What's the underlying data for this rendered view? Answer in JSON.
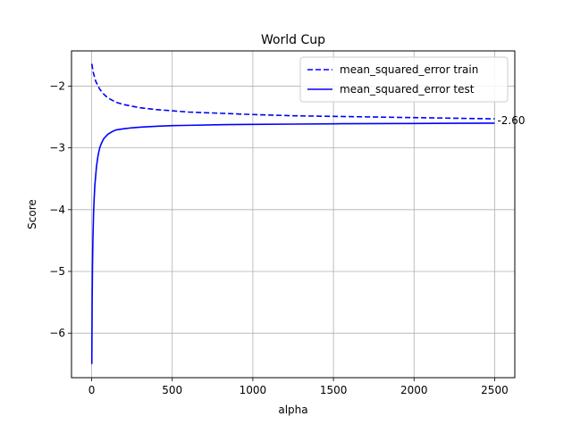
{
  "chart_data": {
    "type": "line",
    "title": "World Cup",
    "xlabel": "alpha",
    "ylabel": "Score",
    "xlim": [
      -125,
      2625
    ],
    "ylim": [
      -6.72,
      -1.43
    ],
    "xticks": [
      0,
      500,
      1000,
      1500,
      2000,
      2500
    ],
    "xtick_labels": [
      "0",
      "500",
      "1000",
      "1500",
      "2000",
      "2500"
    ],
    "yticks": [
      -6,
      -5,
      -4,
      -3,
      -2
    ],
    "ytick_labels": [
      "−6",
      "−5",
      "−4",
      "−3",
      "−2"
    ],
    "grid": true,
    "legend_position": "top-right",
    "series": [
      {
        "name": "mean_squared_error train",
        "color": "#0000ff",
        "style": "dashed",
        "x": [
          1,
          10,
          25,
          50,
          75,
          100,
          150,
          200,
          300,
          400,
          500,
          600,
          800,
          1000,
          1250,
          1500,
          1750,
          2000,
          2250,
          2500
        ],
        "y": [
          -1.64,
          -1.78,
          -1.92,
          -2.05,
          -2.13,
          -2.19,
          -2.26,
          -2.3,
          -2.35,
          -2.38,
          -2.4,
          -2.42,
          -2.44,
          -2.46,
          -2.48,
          -2.49,
          -2.5,
          -2.51,
          -2.52,
          -2.53
        ]
      },
      {
        "name": "mean_squared_error test",
        "color": "#0000ff",
        "style": "solid",
        "x": [
          1,
          3,
          5,
          8,
          12,
          16,
          20,
          25,
          30,
          40,
          50,
          60,
          75,
          100,
          125,
          150,
          200,
          250,
          300,
          400,
          500,
          600,
          800,
          1000,
          1250,
          1500,
          1750,
          2000,
          2250,
          2500
        ],
        "y": [
          -6.5,
          -5.5,
          -4.95,
          -4.45,
          -4.05,
          -3.8,
          -3.6,
          -3.45,
          -3.3,
          -3.12,
          -3.0,
          -2.93,
          -2.85,
          -2.78,
          -2.74,
          -2.71,
          -2.69,
          -2.675,
          -2.665,
          -2.65,
          -2.64,
          -2.635,
          -2.625,
          -2.62,
          -2.615,
          -2.61,
          -2.607,
          -2.605,
          -2.602,
          -2.6
        ]
      }
    ],
    "annotations": [
      {
        "text": "-2.60",
        "x": 2500,
        "y": -2.6
      }
    ]
  }
}
